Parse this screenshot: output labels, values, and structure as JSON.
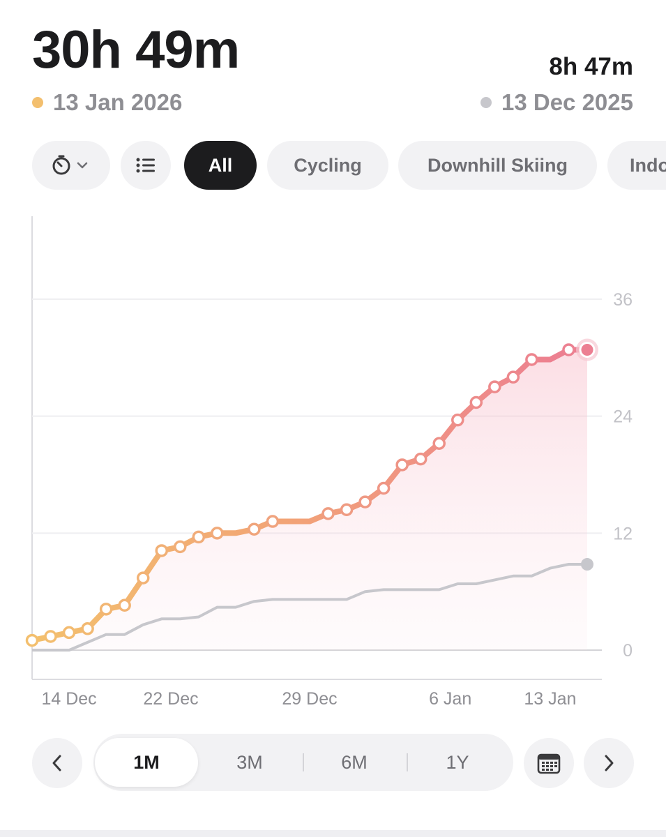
{
  "header": {
    "total": "30h 49m",
    "current_date": "13 Jan 2026",
    "current_color": "#f3bf6e",
    "compare_total": "8h 47m",
    "compare_date": "13 Dec 2025",
    "compare_color": "#c7c7cc"
  },
  "filters": {
    "clock_icon": "stopwatch-icon",
    "list_icon": "list-icon",
    "chips": [
      {
        "label": "All",
        "active": true
      },
      {
        "label": "Cycling",
        "active": false
      },
      {
        "label": "Downhill Skiing",
        "active": false
      },
      {
        "label": "Indo",
        "active": false
      }
    ]
  },
  "chart_data": {
    "type": "line",
    "x_tick_labels": [
      "14 Dec",
      "22 Dec",
      "29 Dec",
      "6 Jan",
      "13 Jan"
    ],
    "y_ticks": [
      0,
      12,
      24,
      36
    ],
    "ylim": [
      -3,
      44.5
    ],
    "grid": true,
    "series": [
      {
        "line_color_start": "#f3bf6e",
        "line_color_end": "#ec7f92",
        "values": [
          1.0,
          1.4,
          1.8,
          2.2,
          4.2,
          4.6,
          7.4,
          10.2,
          10.6,
          11.6,
          12.0,
          12.0,
          12.4,
          13.2,
          13.2,
          13.2,
          14.0,
          14.4,
          15.2,
          16.6,
          19.0,
          19.6,
          21.2,
          23.6,
          25.4,
          27.0,
          28.0,
          29.8,
          29.8,
          30.8,
          30.8
        ]
      },
      {
        "line_color": "#c7c7cc",
        "values": [
          0,
          0,
          0,
          0.8,
          1.6,
          1.6,
          2.6,
          3.2,
          3.2,
          3.4,
          4.4,
          4.4,
          5.0,
          5.2,
          5.2,
          5.2,
          5.2,
          5.2,
          6.0,
          6.2,
          6.2,
          6.2,
          6.2,
          6.8,
          6.8,
          7.2,
          7.6,
          7.6,
          8.4,
          8.8,
          8.8
        ]
      }
    ]
  },
  "periods": {
    "items": [
      "1M",
      "3M",
      "6M",
      "1Y"
    ],
    "active": "1M",
    "prev_icon": "chevron-left-icon",
    "next_icon": "chevron-right-icon",
    "calendar_icon": "calendar-icon"
  }
}
